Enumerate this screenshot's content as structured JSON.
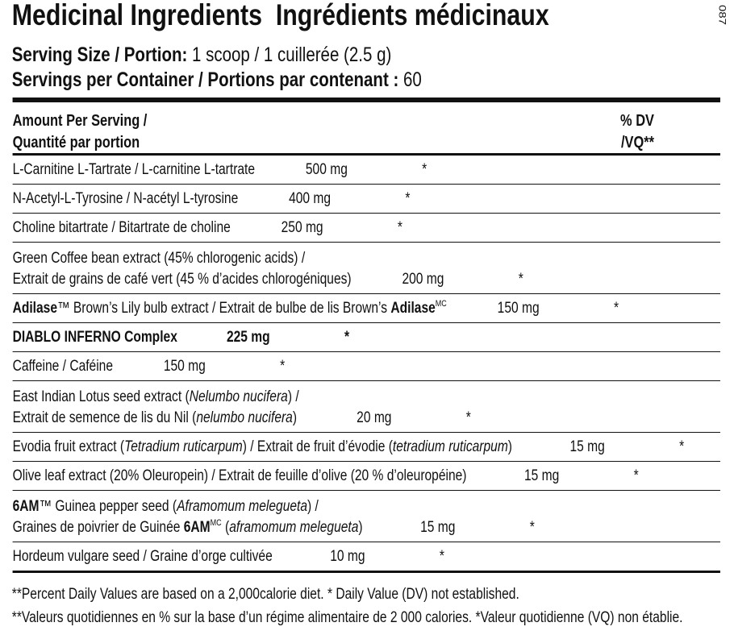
{
  "code": "087",
  "title": "Medicinal Ingredients  Ingrédients médicinaux",
  "serving_size": {
    "label": "Serving Size / Portion:",
    "value": "1 scoop / 1 cuillerée (2.5 g)"
  },
  "servings_per_container": {
    "label": "Servings per Container / Portions par contenant :",
    "value": "60"
  },
  "table": {
    "header": {
      "amount": [
        "Amount Per Serving /",
        "Quantité par portion"
      ],
      "dv": [
        "% DV",
        "/VQ**"
      ]
    },
    "rows": [
      {
        "name": [
          [
            {
              "t": "L-Carnitine L-Tartrate / L-carnitine L-tartrate"
            }
          ]
        ],
        "amount": "500 mg",
        "dv": "*"
      },
      {
        "name": [
          [
            {
              "t": "N-Acetyl-L-Tyrosine / N-acétyl L-tyrosine"
            }
          ]
        ],
        "amount": "400 mg",
        "dv": "*"
      },
      {
        "name": [
          [
            {
              "t": "Choline bitartrate / Bitartrate de choline"
            }
          ]
        ],
        "amount": "250 mg",
        "dv": "*"
      },
      {
        "name": [
          [
            {
              "t": "Green Coffee bean extract (45% chlorogenic acids) /"
            }
          ],
          [
            {
              "t": "Extrait de grains de café vert (45 % d’acides chlorogéniques)"
            }
          ]
        ],
        "amount": "200 mg",
        "dv": "*"
      },
      {
        "name": [
          [
            {
              "b": "Adilase"
            },
            {
              "t": "™ Brown’s Lily bulb extract / Extrait de bulbe de lis Brown’s "
            },
            {
              "b": "Adilase"
            },
            {
              "sup": "MC"
            }
          ]
        ],
        "amount": "150 mg",
        "dv": "*"
      },
      {
        "name": [
          [
            {
              "t": "DIABLO INFERNO Complex"
            }
          ]
        ],
        "amount": "225 mg",
        "dv": "*",
        "bold": true
      },
      {
        "name": [
          [
            {
              "t": "Caffeine / Caféine"
            }
          ]
        ],
        "amount": "150 mg",
        "dv": "*",
        "indent": true
      },
      {
        "name": [
          [
            {
              "t": "East Indian Lotus seed extract ("
            },
            {
              "i": "Nelumbo nucifera"
            },
            {
              "t": ") /"
            }
          ],
          [
            {
              "t": "Extrait de semence de lis du Nil ("
            },
            {
              "i": "nelumbo nucifera"
            },
            {
              "t": ")"
            }
          ]
        ],
        "amount": "20 mg",
        "dv": "*",
        "indent": true
      },
      {
        "name": [
          [
            {
              "t": "Evodia fruit extract ("
            },
            {
              "i": "Tetradium ruticarpum"
            },
            {
              "t": ") / Extrait de fruit d’évodie ("
            },
            {
              "i": "tetradium ruticarpum"
            },
            {
              "t": ")"
            }
          ]
        ],
        "amount": "15 mg",
        "dv": "*",
        "indent": true
      },
      {
        "name": [
          [
            {
              "t": "Olive leaf extract (20% Oleuropein) / Extrait de feuille d’olive (20 % d’oleuropéine)"
            }
          ]
        ],
        "amount": "15 mg",
        "dv": "*",
        "indent": true
      },
      {
        "name": [
          [
            {
              "b": "6AM"
            },
            {
              "t": "™ Guinea pepper seed ("
            },
            {
              "i": "Aframomum melegueta"
            },
            {
              "t": ") /"
            }
          ],
          [
            {
              "t": "Graines de poivrier de Guinée "
            },
            {
              "b": "6AM"
            },
            {
              "sup": "MC"
            },
            {
              "t": " ("
            },
            {
              "i": "aframomum melegueta"
            },
            {
              "t": ")"
            }
          ]
        ],
        "amount": "15 mg",
        "dv": "*",
        "indent": true
      },
      {
        "name": [
          [
            {
              "t": "Hordeum vulgare seed / Graine d’orge cultivée"
            }
          ]
        ],
        "amount": "10 mg",
        "dv": "*",
        "indent": true
      }
    ]
  },
  "footnotes": [
    "**Percent Daily Values are based on a 2,000calorie diet. * Daily Value (DV) not established.",
    "**Valeurs quotidiennes en % sur la base d’un régime alimentaire de 2 000 calories. *Valeur quotidienne (VQ) non établie."
  ]
}
